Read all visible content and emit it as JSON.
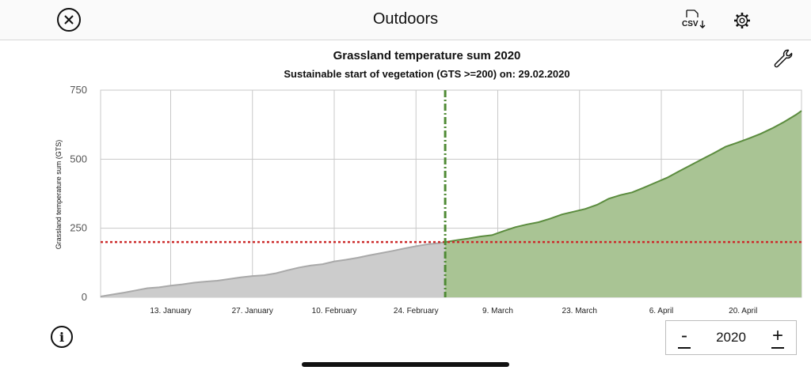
{
  "app": {
    "title": "Outdoors"
  },
  "toolbar": {
    "csv_label": "CSV"
  },
  "icons": {
    "close": "close-icon",
    "csv": "csv-download-icon",
    "settings": "gear-icon",
    "tools": "wrench-icon",
    "info": "info-icon"
  },
  "year_stepper": {
    "value": "2020",
    "minus": "-",
    "plus": "+"
  },
  "colors": {
    "before": "#cccccc",
    "before_line": "#a9a9a9",
    "after": "#a9c494",
    "after_line": "#5b8c3e",
    "threshold": "#cc2a2a",
    "start_line": "#4f8a35"
  },
  "chart_data": {
    "type": "area",
    "title": "Grassland temperature sum 2020",
    "subtitle": "Sustainable start of vegetation (GTS >=200) on: 29.02.2020",
    "ylabel": "Grassland temperature sum (GTS)",
    "xlabel": "",
    "ylim": [
      0,
      750
    ],
    "yticks": [
      0,
      250,
      500,
      750
    ],
    "xlim": [
      "2020-01-01",
      "2020-04-30"
    ],
    "xticks": [
      {
        "date": "2020-01-13",
        "label": "13. January"
      },
      {
        "date": "2020-01-27",
        "label": "27. January"
      },
      {
        "date": "2020-02-10",
        "label": "10. February"
      },
      {
        "date": "2020-02-24",
        "label": "24. February"
      },
      {
        "date": "2020-03-09",
        "label": "9. March"
      },
      {
        "date": "2020-03-23",
        "label": "23. March"
      },
      {
        "date": "2020-04-06",
        "label": "6. April"
      },
      {
        "date": "2020-04-20",
        "label": "20. April"
      }
    ],
    "grid": true,
    "threshold": 200,
    "vegetation_start": "2020-02-29",
    "series": [
      {
        "x": [
          "2020-01-01",
          "2020-01-03",
          "2020-01-05",
          "2020-01-07",
          "2020-01-09",
          "2020-01-11",
          "2020-01-13",
          "2020-01-15",
          "2020-01-17",
          "2020-01-19",
          "2020-01-21",
          "2020-01-23",
          "2020-01-25",
          "2020-01-27",
          "2020-01-29",
          "2020-01-31",
          "2020-02-02",
          "2020-02-04",
          "2020-02-06",
          "2020-02-08",
          "2020-02-10",
          "2020-02-12",
          "2020-02-14",
          "2020-02-16",
          "2020-02-18",
          "2020-02-20",
          "2020-02-22",
          "2020-02-24",
          "2020-02-26",
          "2020-02-28",
          "2020-02-29",
          "2020-03-02",
          "2020-03-04",
          "2020-03-06",
          "2020-03-08",
          "2020-03-10",
          "2020-03-12",
          "2020-03-14",
          "2020-03-16",
          "2020-03-18",
          "2020-03-20",
          "2020-03-22",
          "2020-03-24",
          "2020-03-26",
          "2020-03-28",
          "2020-03-30",
          "2020-04-01",
          "2020-04-03",
          "2020-04-05",
          "2020-04-07",
          "2020-04-09",
          "2020-04-11",
          "2020-04-13",
          "2020-04-15",
          "2020-04-17",
          "2020-04-19",
          "2020-04-21",
          "2020-04-23",
          "2020-04-25",
          "2020-04-27",
          "2020-04-29",
          "2020-04-30"
        ],
        "y": [
          3,
          10,
          17,
          25,
          33,
          36,
          42,
          47,
          53,
          57,
          60,
          66,
          72,
          77,
          80,
          87,
          98,
          108,
          115,
          120,
          130,
          136,
          143,
          152,
          160,
          168,
          177,
          185,
          192,
          196,
          200,
          207,
          213,
          220,
          225,
          240,
          254,
          264,
          272,
          285,
          300,
          310,
          320,
          335,
          357,
          370,
          380,
          397,
          415,
          433,
          456,
          478,
          500,
          522,
          545,
          560,
          575,
          592,
          612,
          635,
          660,
          675
        ]
      }
    ]
  }
}
